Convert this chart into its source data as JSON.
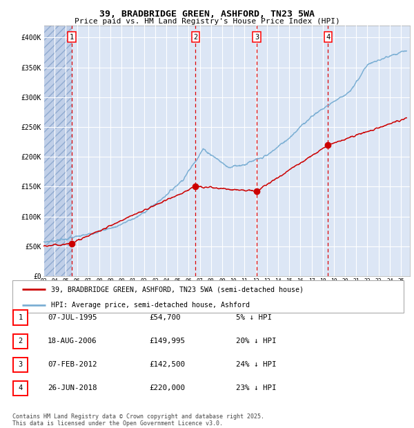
{
  "title_line1": "39, BRADBRIDGE GREEN, ASHFORD, TN23 5WA",
  "title_line2": "Price paid vs. HM Land Registry's House Price Index (HPI)",
  "background_color": "#ffffff",
  "plot_bg_color": "#dce6f5",
  "grid_color": "#ffffff",
  "red_line_color": "#cc0000",
  "blue_line_color": "#7bafd4",
  "dashed_color": "#dd0000",
  "legend_line1": "39, BRADBRIDGE GREEN, ASHFORD, TN23 5WA (semi-detached house)",
  "legend_line2": "HPI: Average price, semi-detached house, Ashford",
  "table_entries": [
    {
      "num": 1,
      "date": "07-JUL-1995",
      "price": "£54,700",
      "pct": "5% ↓ HPI"
    },
    {
      "num": 2,
      "date": "18-AUG-2006",
      "price": "£149,995",
      "pct": "20% ↓ HPI"
    },
    {
      "num": 3,
      "date": "07-FEB-2012",
      "price": "£142,500",
      "pct": "24% ↓ HPI"
    },
    {
      "num": 4,
      "date": "26-JUN-2018",
      "price": "£220,000",
      "pct": "23% ↓ HPI"
    }
  ],
  "footer": "Contains HM Land Registry data © Crown copyright and database right 2025.\nThis data is licensed under the Open Government Licence v3.0.",
  "sale_dates": [
    1995.52,
    2006.62,
    2012.09,
    2018.48
  ],
  "sale_prices": [
    54700,
    149995,
    142500,
    220000
  ],
  "ylim": [
    0,
    420000
  ],
  "xlim_start": 1993.0,
  "xlim_end": 2025.8,
  "yticks": [
    0,
    50000,
    100000,
    150000,
    200000,
    250000,
    300000,
    350000,
    400000
  ],
  "ytick_labels": [
    "£0",
    "£50K",
    "£100K",
    "£150K",
    "£200K",
    "£250K",
    "£300K",
    "£350K",
    "£400K"
  ],
  "xtick_years": [
    1993,
    1994,
    1995,
    1996,
    1997,
    1998,
    1999,
    2000,
    2001,
    2002,
    2003,
    2004,
    2005,
    2006,
    2007,
    2008,
    2009,
    2010,
    2011,
    2012,
    2013,
    2014,
    2015,
    2016,
    2017,
    2018,
    2019,
    2020,
    2021,
    2022,
    2023,
    2024,
    2025
  ],
  "hpi_keys_t": [
    1993.0,
    1995.0,
    1997.0,
    1999.5,
    2001.5,
    2003.5,
    2005.5,
    2007.3,
    2008.5,
    2009.5,
    2011.0,
    2013.0,
    2015.0,
    2017.0,
    2019.0,
    2020.5,
    2022.0,
    2023.5,
    2025.5
  ],
  "hpi_keys_v": [
    57000,
    62000,
    70000,
    83000,
    100000,
    128000,
    162000,
    213000,
    197000,
    183000,
    187000,
    202000,
    232000,
    268000,
    293000,
    310000,
    355000,
    365000,
    378000
  ],
  "red_keys_t": [
    1993.0,
    1995.52,
    2006.62,
    2012.09,
    2018.48,
    2025.5
  ],
  "red_keys_v": [
    50000,
    54700,
    149995,
    142500,
    220000,
    265000
  ]
}
